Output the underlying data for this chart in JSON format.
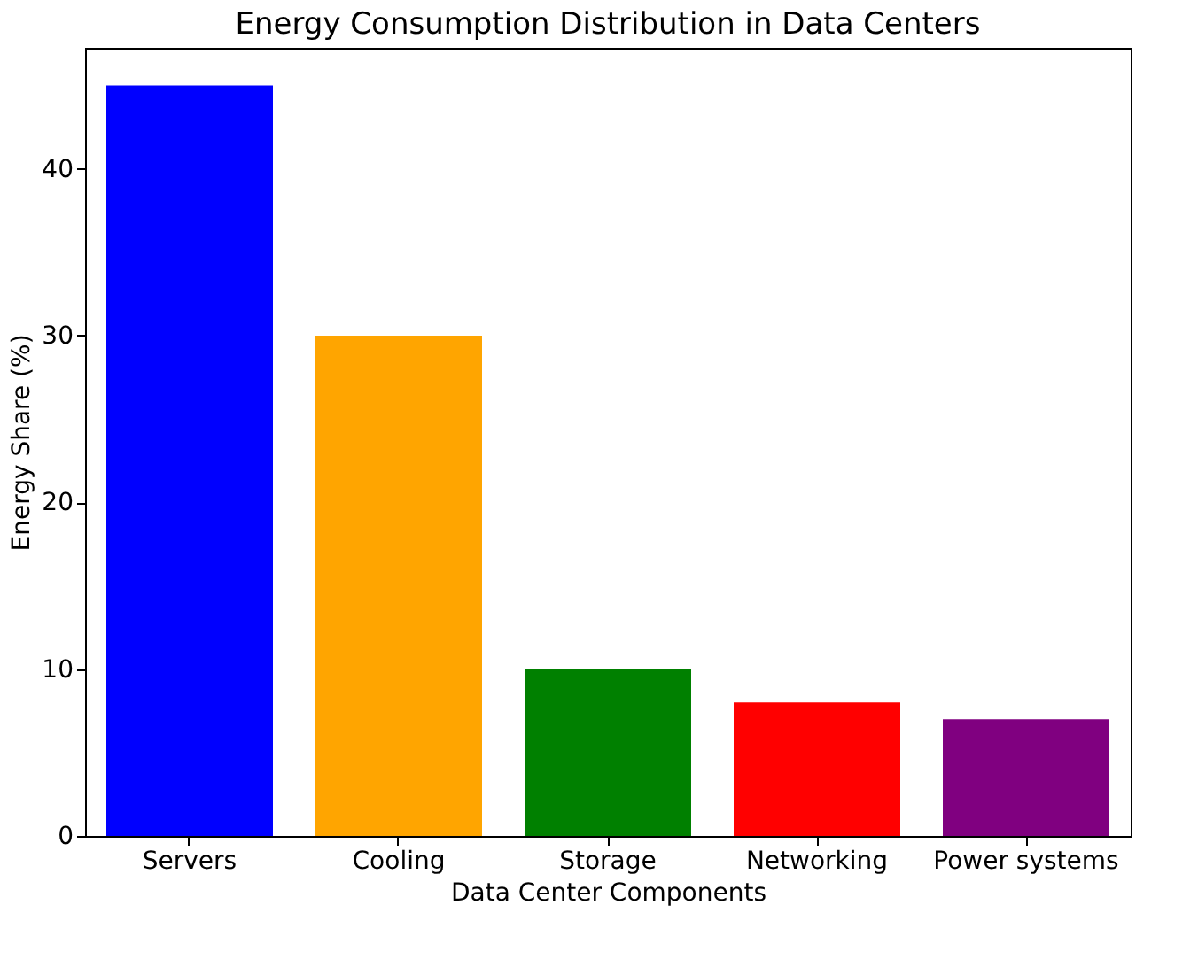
{
  "chart_data": {
    "type": "bar",
    "title": "Energy Consumption Distribution in Data Centers",
    "xlabel": "Data Center Components",
    "ylabel": "Energy Share (%)",
    "categories": [
      "Servers",
      "Cooling",
      "Storage",
      "Networking",
      "Power systems"
    ],
    "values": [
      45,
      30,
      10,
      8,
      7
    ],
    "colors": [
      "#0000ff",
      "#ffa500",
      "#008000",
      "#ff0000",
      "#800080"
    ],
    "ylim": [
      0,
      47.25
    ],
    "yticks": [
      0,
      10,
      20,
      30,
      40
    ],
    "grid": false
  }
}
